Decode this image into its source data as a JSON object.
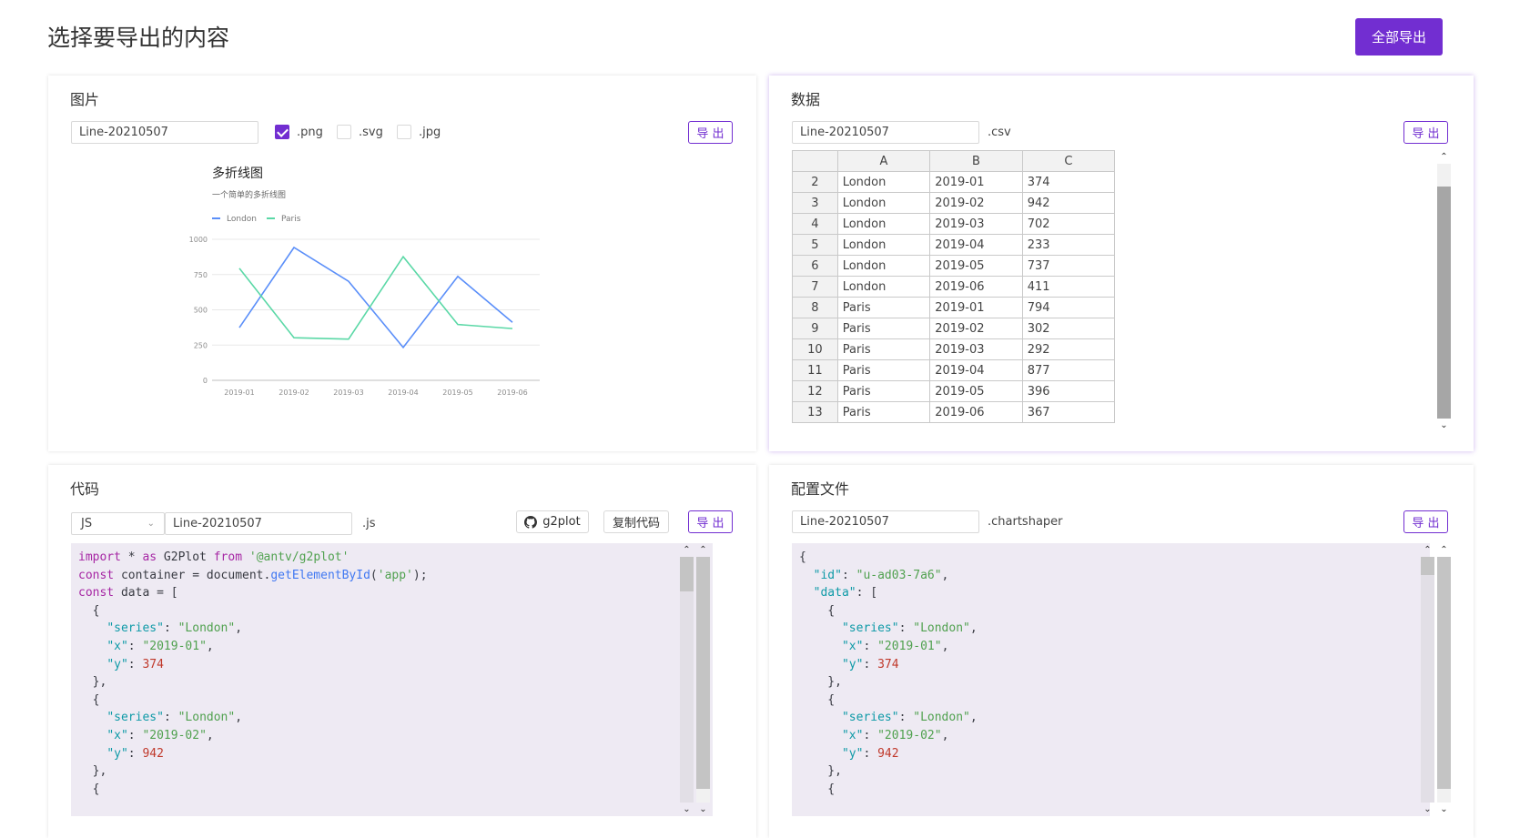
{
  "header": {
    "title": "选择要导出的内容",
    "export_all_label": "全部导出"
  },
  "image_panel": {
    "title": "图片",
    "filename": "Line-20210507",
    "formats": [
      {
        "label": ".png",
        "checked": true
      },
      {
        "label": ".svg",
        "checked": false
      },
      {
        "label": ".jpg",
        "checked": false
      }
    ],
    "export_label": "导 出"
  },
  "chart_data": {
    "type": "line",
    "title": "多折线图",
    "subtitle": "一个简单的多折线图",
    "legend_position": "top-left",
    "grid": true,
    "categories": [
      "2019-01",
      "2019-02",
      "2019-03",
      "2019-04",
      "2019-05",
      "2019-06"
    ],
    "y_ticks": [
      "0",
      "250",
      "500",
      "750",
      "1000"
    ],
    "ylim": [
      0,
      1000
    ],
    "series": [
      {
        "name": "London",
        "color": "#5b8ff9",
        "values": [
          374,
          942,
          702,
          233,
          737,
          411
        ]
      },
      {
        "name": "Paris",
        "color": "#5ad8a6",
        "values": [
          794,
          302,
          292,
          877,
          396,
          367
        ]
      }
    ]
  },
  "data_panel": {
    "title": "数据",
    "filename": "Line-20210507",
    "suffix": ".csv",
    "export_label": "导 出",
    "columns": [
      "A",
      "B",
      "C"
    ],
    "rows": [
      {
        "num": "2",
        "a": "London",
        "b": "2019-01",
        "c": "374"
      },
      {
        "num": "3",
        "a": "London",
        "b": "2019-02",
        "c": "942"
      },
      {
        "num": "4",
        "a": "London",
        "b": "2019-03",
        "c": "702"
      },
      {
        "num": "5",
        "a": "London",
        "b": "2019-04",
        "c": "233"
      },
      {
        "num": "6",
        "a": "London",
        "b": "2019-05",
        "c": "737"
      },
      {
        "num": "7",
        "a": "London",
        "b": "2019-06",
        "c": "411"
      },
      {
        "num": "8",
        "a": "Paris",
        "b": "2019-01",
        "c": "794"
      },
      {
        "num": "9",
        "a": "Paris",
        "b": "2019-02",
        "c": "302"
      },
      {
        "num": "10",
        "a": "Paris",
        "b": "2019-03",
        "c": "292"
      },
      {
        "num": "11",
        "a": "Paris",
        "b": "2019-04",
        "c": "877"
      },
      {
        "num": "12",
        "a": "Paris",
        "b": "2019-05",
        "c": "396"
      },
      {
        "num": "13",
        "a": "Paris",
        "b": "2019-06",
        "c": "367"
      }
    ]
  },
  "code_panel": {
    "title": "代码",
    "language": "JS",
    "filename": "Line-20210507",
    "suffix": ".js",
    "github_label": "g2plot",
    "copy_label": "复制代码",
    "export_label": "导 出",
    "lines": [
      [
        {
          "t": "kw",
          "v": "import"
        },
        {
          "t": "plain",
          "v": " * "
        },
        {
          "t": "kw",
          "v": "as"
        },
        {
          "t": "plain",
          "v": " G2Plot "
        },
        {
          "t": "kw",
          "v": "from"
        },
        {
          "t": "plain",
          "v": " "
        },
        {
          "t": "str",
          "v": "'@antv/g2plot'"
        }
      ],
      [
        {
          "t": "kw",
          "v": "const"
        },
        {
          "t": "plain",
          "v": " container = "
        },
        {
          "t": "plain",
          "v": "document."
        },
        {
          "t": "fn",
          "v": "getElementById"
        },
        {
          "t": "plain",
          "v": "("
        },
        {
          "t": "str",
          "v": "'app'"
        },
        {
          "t": "plain",
          "v": ");"
        }
      ],
      [
        {
          "t": "kw",
          "v": "const"
        },
        {
          "t": "plain",
          "v": " data = ["
        }
      ],
      [
        {
          "t": "plain",
          "v": "  {"
        }
      ],
      [
        {
          "t": "plain",
          "v": "    "
        },
        {
          "t": "prop",
          "v": "\"series\""
        },
        {
          "t": "plain",
          "v": ": "
        },
        {
          "t": "str",
          "v": "\"London\""
        },
        {
          "t": "plain",
          "v": ","
        }
      ],
      [
        {
          "t": "plain",
          "v": "    "
        },
        {
          "t": "prop",
          "v": "\"x\""
        },
        {
          "t": "plain",
          "v": ": "
        },
        {
          "t": "str",
          "v": "\"2019-01\""
        },
        {
          "t": "plain",
          "v": ","
        }
      ],
      [
        {
          "t": "plain",
          "v": "    "
        },
        {
          "t": "prop",
          "v": "\"y\""
        },
        {
          "t": "plain",
          "v": ": "
        },
        {
          "t": "num",
          "v": "374"
        }
      ],
      [
        {
          "t": "plain",
          "v": "  },"
        }
      ],
      [
        {
          "t": "plain",
          "v": "  {"
        }
      ],
      [
        {
          "t": "plain",
          "v": "    "
        },
        {
          "t": "prop",
          "v": "\"series\""
        },
        {
          "t": "plain",
          "v": ": "
        },
        {
          "t": "str",
          "v": "\"London\""
        },
        {
          "t": "plain",
          "v": ","
        }
      ],
      [
        {
          "t": "plain",
          "v": "    "
        },
        {
          "t": "prop",
          "v": "\"x\""
        },
        {
          "t": "plain",
          "v": ": "
        },
        {
          "t": "str",
          "v": "\"2019-02\""
        },
        {
          "t": "plain",
          "v": ","
        }
      ],
      [
        {
          "t": "plain",
          "v": "    "
        },
        {
          "t": "prop",
          "v": "\"y\""
        },
        {
          "t": "plain",
          "v": ": "
        },
        {
          "t": "num",
          "v": "942"
        }
      ],
      [
        {
          "t": "plain",
          "v": "  },"
        }
      ],
      [
        {
          "t": "plain",
          "v": "  {"
        }
      ]
    ]
  },
  "config_panel": {
    "title": "配置文件",
    "filename": "Line-20210507",
    "suffix": ".chartshaper",
    "export_label": "导 出",
    "lines": [
      [
        {
          "t": "plain",
          "v": "{"
        }
      ],
      [
        {
          "t": "plain",
          "v": "  "
        },
        {
          "t": "prop",
          "v": "\"id\""
        },
        {
          "t": "plain",
          "v": ": "
        },
        {
          "t": "str",
          "v": "\"u-ad03-7a6\""
        },
        {
          "t": "plain",
          "v": ","
        }
      ],
      [
        {
          "t": "plain",
          "v": "  "
        },
        {
          "t": "prop",
          "v": "\"data\""
        },
        {
          "t": "plain",
          "v": ": ["
        }
      ],
      [
        {
          "t": "plain",
          "v": "    {"
        }
      ],
      [
        {
          "t": "plain",
          "v": "      "
        },
        {
          "t": "prop",
          "v": "\"series\""
        },
        {
          "t": "plain",
          "v": ": "
        },
        {
          "t": "str",
          "v": "\"London\""
        },
        {
          "t": "plain",
          "v": ","
        }
      ],
      [
        {
          "t": "plain",
          "v": "      "
        },
        {
          "t": "prop",
          "v": "\"x\""
        },
        {
          "t": "plain",
          "v": ": "
        },
        {
          "t": "str",
          "v": "\"2019-01\""
        },
        {
          "t": "plain",
          "v": ","
        }
      ],
      [
        {
          "t": "plain",
          "v": "      "
        },
        {
          "t": "prop",
          "v": "\"y\""
        },
        {
          "t": "plain",
          "v": ": "
        },
        {
          "t": "num",
          "v": "374"
        }
      ],
      [
        {
          "t": "plain",
          "v": "    },"
        }
      ],
      [
        {
          "t": "plain",
          "v": "    {"
        }
      ],
      [
        {
          "t": "plain",
          "v": "      "
        },
        {
          "t": "prop",
          "v": "\"series\""
        },
        {
          "t": "plain",
          "v": ": "
        },
        {
          "t": "str",
          "v": "\"London\""
        },
        {
          "t": "plain",
          "v": ","
        }
      ],
      [
        {
          "t": "plain",
          "v": "      "
        },
        {
          "t": "prop",
          "v": "\"x\""
        },
        {
          "t": "plain",
          "v": ": "
        },
        {
          "t": "str",
          "v": "\"2019-02\""
        },
        {
          "t": "plain",
          "v": ","
        }
      ],
      [
        {
          "t": "plain",
          "v": "      "
        },
        {
          "t": "prop",
          "v": "\"y\""
        },
        {
          "t": "plain",
          "v": ": "
        },
        {
          "t": "num",
          "v": "942"
        }
      ],
      [
        {
          "t": "plain",
          "v": "    },"
        }
      ],
      [
        {
          "t": "plain",
          "v": "    {"
        }
      ]
    ]
  },
  "colors": {
    "accent": "#722ed1",
    "editor_bg": "#eeeaf3"
  }
}
